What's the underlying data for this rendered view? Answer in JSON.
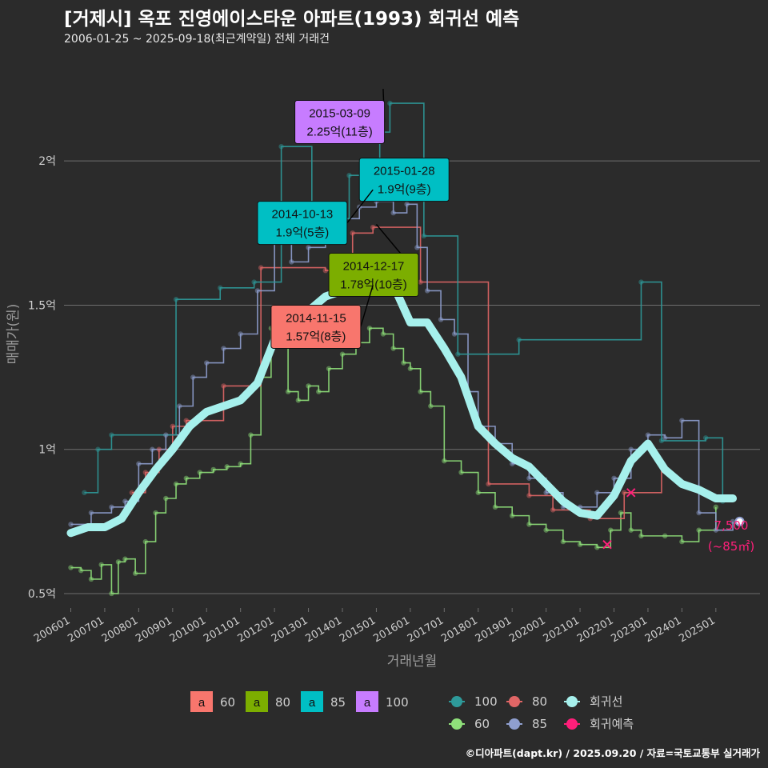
{
  "title": "[거제시] 옥포 진영에이스타운 아파트(1993) 회귀선 예측",
  "subtitle": "2006-01-25 ~ 2025-09-18(최근계약일) 전체 거래건",
  "caption": "©디아파트(dapt.kr) / 2025.09.20 / 자료=국토교통부 실거래가",
  "colors": {
    "background": "#2b2b2b",
    "grid": "#6e6e6e",
    "axis_text": "#cfcfcf",
    "s60": "#8fe07a",
    "s80": "#e06666",
    "s85": "#8f9fcf",
    "s100": "#2e9a9a",
    "trend": "#a6f0ec",
    "forecast": "#ff1f7a",
    "label60": "#f8766d",
    "label80": "#7cae00",
    "label85": "#00bfc4",
    "label100": "#c77cff"
  },
  "chart_data": {
    "type": "scatter",
    "xlabel": "거래년월",
    "ylabel": "매매가(원)",
    "x_ticks": [
      "200601",
      "200701",
      "200801",
      "200901",
      "201001",
      "201101",
      "201201",
      "201301",
      "201401",
      "201501",
      "201601",
      "201701",
      "201801",
      "201901",
      "202001",
      "202101",
      "202201",
      "202301",
      "202401",
      "202501"
    ],
    "y_ticks": [
      {
        "value": 0.5,
        "label": "0.5억"
      },
      {
        "value": 1.0,
        "label": "1억"
      },
      {
        "value": 1.5,
        "label": "1.5억"
      },
      {
        "value": 2.0,
        "label": "2억"
      }
    ],
    "ylim": [
      0.45,
      2.35
    ],
    "xlim": [
      2005.8,
      2026.3
    ],
    "series": [
      {
        "name": "60",
        "color_key": "s60",
        "points": [
          [
            2006.0,
            0.59
          ],
          [
            2006.3,
            0.58
          ],
          [
            2006.6,
            0.55
          ],
          [
            2006.9,
            0.6
          ],
          [
            2007.2,
            0.5
          ],
          [
            2007.4,
            0.61
          ],
          [
            2007.6,
            0.62
          ],
          [
            2007.9,
            0.57
          ],
          [
            2008.2,
            0.68
          ],
          [
            2008.5,
            0.78
          ],
          [
            2008.8,
            0.83
          ],
          [
            2009.1,
            0.88
          ],
          [
            2009.4,
            0.9
          ],
          [
            2009.8,
            0.92
          ],
          [
            2010.2,
            0.93
          ],
          [
            2010.6,
            0.94
          ],
          [
            2011.0,
            0.95
          ],
          [
            2011.3,
            1.05
          ],
          [
            2011.6,
            1.25
          ],
          [
            2011.9,
            1.42
          ],
          [
            2012.1,
            1.36
          ],
          [
            2012.4,
            1.2
          ],
          [
            2012.7,
            1.17
          ],
          [
            2013.0,
            1.22
          ],
          [
            2013.3,
            1.2
          ],
          [
            2013.6,
            1.28
          ],
          [
            2014.0,
            1.33
          ],
          [
            2014.4,
            1.37
          ],
          [
            2014.8,
            1.42
          ],
          [
            2015.2,
            1.4
          ],
          [
            2015.5,
            1.35
          ],
          [
            2015.8,
            1.3
          ],
          [
            2016.0,
            1.28
          ],
          [
            2016.3,
            1.2
          ],
          [
            2016.6,
            1.15
          ],
          [
            2017.0,
            0.96
          ],
          [
            2017.5,
            0.92
          ],
          [
            2018.0,
            0.85
          ],
          [
            2018.5,
            0.8
          ],
          [
            2019.0,
            0.77
          ],
          [
            2019.5,
            0.74
          ],
          [
            2020.0,
            0.72
          ],
          [
            2020.5,
            0.68
          ],
          [
            2021.0,
            0.67
          ],
          [
            2021.5,
            0.66
          ],
          [
            2021.9,
            0.72
          ],
          [
            2022.2,
            0.78
          ],
          [
            2022.5,
            0.72
          ],
          [
            2022.8,
            0.7
          ],
          [
            2023.5,
            0.7
          ],
          [
            2024.0,
            0.68
          ],
          [
            2024.5,
            0.72
          ],
          [
            2025.0,
            0.8
          ]
        ]
      },
      {
        "name": "80",
        "color_key": "s80",
        "points": [
          [
            2007.8,
            0.85
          ],
          [
            2008.2,
            0.92
          ],
          [
            2008.6,
            1.0
          ],
          [
            2009.0,
            1.08
          ],
          [
            2009.4,
            1.1
          ],
          [
            2010.5,
            1.22
          ],
          [
            2011.6,
            1.63
          ],
          [
            2013.5,
            1.62
          ],
          [
            2014.3,
            1.75
          ],
          [
            2014.9,
            1.77
          ],
          [
            2016.3,
            1.58
          ],
          [
            2018.3,
            0.88
          ],
          [
            2019.5,
            0.84
          ],
          [
            2020.2,
            0.79
          ],
          [
            2021.3,
            0.76
          ],
          [
            2022.3,
            0.85
          ],
          [
            2023.4,
            0.95
          ]
        ]
      },
      {
        "name": "85",
        "color_key": "s85",
        "points": [
          [
            2006.0,
            0.74
          ],
          [
            2006.6,
            0.78
          ],
          [
            2007.2,
            0.8
          ],
          [
            2007.6,
            0.82
          ],
          [
            2008.0,
            0.95
          ],
          [
            2008.4,
            1.0
          ],
          [
            2008.8,
            1.05
          ],
          [
            2009.2,
            1.15
          ],
          [
            2009.6,
            1.25
          ],
          [
            2010.0,
            1.3
          ],
          [
            2010.5,
            1.35
          ],
          [
            2011.0,
            1.4
          ],
          [
            2011.5,
            1.55
          ],
          [
            2012.0,
            1.72
          ],
          [
            2012.5,
            1.65
          ],
          [
            2013.0,
            1.7
          ],
          [
            2013.5,
            1.75
          ],
          [
            2014.0,
            1.8
          ],
          [
            2014.5,
            1.84
          ],
          [
            2015.0,
            1.86
          ],
          [
            2015.5,
            1.82
          ],
          [
            2015.9,
            1.85
          ],
          [
            2016.2,
            1.7
          ],
          [
            2016.5,
            1.55
          ],
          [
            2016.9,
            1.45
          ],
          [
            2017.3,
            1.4
          ],
          [
            2017.7,
            1.2
          ],
          [
            2018.0,
            1.08
          ],
          [
            2018.5,
            1.02
          ],
          [
            2019.0,
            0.95
          ],
          [
            2019.5,
            0.9
          ],
          [
            2020.0,
            0.85
          ],
          [
            2020.5,
            0.8
          ],
          [
            2021.0,
            0.8
          ],
          [
            2021.5,
            0.85
          ],
          [
            2022.0,
            0.9
          ],
          [
            2022.5,
            1.0
          ],
          [
            2023.0,
            1.05
          ],
          [
            2023.5,
            1.04
          ],
          [
            2024.0,
            1.1
          ],
          [
            2024.5,
            0.78
          ],
          [
            2025.0,
            0.72
          ],
          [
            2025.5,
            0.75
          ]
        ]
      },
      {
        "name": "100",
        "color_key": "s100",
        "points": [
          [
            2006.4,
            0.85
          ],
          [
            2006.8,
            1.0
          ],
          [
            2007.2,
            1.05
          ],
          [
            2009.1,
            1.52
          ],
          [
            2010.4,
            1.56
          ],
          [
            2011.4,
            1.58
          ],
          [
            2012.2,
            2.05
          ],
          [
            2013.1,
            1.8
          ],
          [
            2014.2,
            1.95
          ],
          [
            2015.1,
            2.1
          ],
          [
            2015.4,
            2.2
          ],
          [
            2016.4,
            1.74
          ],
          [
            2017.4,
            1.33
          ],
          [
            2019.2,
            1.38
          ],
          [
            2022.8,
            1.58
          ],
          [
            2023.4,
            1.03
          ],
          [
            2024.7,
            1.04
          ],
          [
            2025.2,
            0.82
          ]
        ]
      }
    ],
    "trend": [
      [
        2006.0,
        0.71
      ],
      [
        2006.5,
        0.73
      ],
      [
        2007.0,
        0.73
      ],
      [
        2007.5,
        0.76
      ],
      [
        2008.0,
        0.85
      ],
      [
        2008.5,
        0.93
      ],
      [
        2009.0,
        1.0
      ],
      [
        2009.5,
        1.08
      ],
      [
        2010.0,
        1.13
      ],
      [
        2010.5,
        1.15
      ],
      [
        2011.0,
        1.17
      ],
      [
        2011.5,
        1.23
      ],
      [
        2012.0,
        1.38
      ],
      [
        2012.5,
        1.4
      ],
      [
        2013.0,
        1.48
      ],
      [
        2013.5,
        1.53
      ],
      [
        2014.0,
        1.55
      ],
      [
        2014.5,
        1.6
      ],
      [
        2015.0,
        1.63
      ],
      [
        2015.5,
        1.57
      ],
      [
        2016.0,
        1.44
      ],
      [
        2016.5,
        1.44
      ],
      [
        2017.0,
        1.35
      ],
      [
        2017.5,
        1.25
      ],
      [
        2018.0,
        1.08
      ],
      [
        2018.5,
        1.02
      ],
      [
        2019.0,
        0.97
      ],
      [
        2019.5,
        0.94
      ],
      [
        2020.0,
        0.88
      ],
      [
        2020.5,
        0.82
      ],
      [
        2021.0,
        0.78
      ],
      [
        2021.5,
        0.77
      ],
      [
        2022.0,
        0.84
      ],
      [
        2022.5,
        0.96
      ],
      [
        2023.0,
        1.02
      ],
      [
        2023.5,
        0.93
      ],
      [
        2024.0,
        0.88
      ],
      [
        2024.5,
        0.86
      ],
      [
        2025.0,
        0.83
      ],
      [
        2025.5,
        0.83
      ]
    ],
    "forecast_points": [
      [
        2021.8,
        0.67
      ],
      [
        2022.5,
        0.85
      ]
    ],
    "forecast_label": {
      "x": 2025.7,
      "y": 0.75,
      "value": "7,500",
      "area": "(~85㎡)"
    },
    "annotations": [
      {
        "date": "2015-03-09",
        "text": "2.25억(11층)",
        "color_key": "label100",
        "box_x": 2012.6,
        "box_y": 2.21,
        "point_x": 2015.2,
        "point_y": 2.25
      },
      {
        "date": "2015-01-28",
        "text": "1.9억(9층)",
        "color_key": "label85",
        "box_x": 2014.5,
        "box_y": 2.01,
        "point_x": 2015.1,
        "point_y": 1.9
      },
      {
        "date": "2014-10-13",
        "text": "1.9억(5층)",
        "color_key": "label85",
        "box_x": 2011.5,
        "box_y": 1.86,
        "point_x": 2014.9,
        "point_y": 1.9
      },
      {
        "date": "2014-12-17",
        "text": "1.78억(10층)",
        "color_key": "label80",
        "box_x": 2013.6,
        "box_y": 1.68,
        "point_x": 2015.0,
        "point_y": 1.78
      },
      {
        "date": "2014-11-15",
        "text": "1.57억(8층)",
        "color_key": "label60",
        "box_x": 2011.9,
        "box_y": 1.5,
        "point_x": 2014.9,
        "point_y": 1.57
      }
    ]
  },
  "legend": {
    "size_items": [
      {
        "swatch": "a",
        "label": "60",
        "color_key": "label60"
      },
      {
        "swatch": "a",
        "label": "80",
        "color_key": "label80"
      },
      {
        "swatch": "a",
        "label": "85",
        "color_key": "label85"
      },
      {
        "swatch": "a",
        "label": "100",
        "color_key": "label100"
      }
    ],
    "series_items": [
      {
        "label": "100",
        "color_key": "s100"
      },
      {
        "label": "80",
        "color_key": "s80"
      },
      {
        "label": "회귀선",
        "color_key": "trend"
      },
      {
        "label": "60",
        "color_key": "s60"
      },
      {
        "label": "85",
        "color_key": "s85"
      },
      {
        "label": "회귀예측",
        "color_key": "forecast"
      }
    ]
  }
}
